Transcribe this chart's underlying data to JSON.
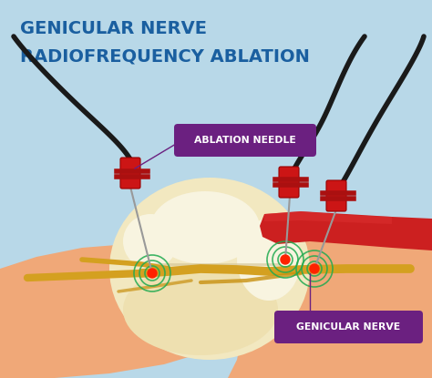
{
  "bg_color": "#B8D8E8",
  "skin_color": "#F0A878",
  "skin_color2": "#EDA070",
  "bone_color": "#F2E8C0",
  "bone_color2": "#EEE0B0",
  "bone_white": "#F8F4E0",
  "nerve_color": "#D4A020",
  "nerve_color2": "#C89010",
  "muscle_color": "#CC2020",
  "needle_color": "#999999",
  "connector_color": "#CC1515",
  "cable_color": "#1A1A1A",
  "ripple_color": "#20AA50",
  "title_color": "#1A5FA0",
  "label_bg": "#6B2080",
  "label_text": "#FFFFFF",
  "title_line1": "GENICULAR NERVE",
  "title_line2": "RADIOFREQUENCY ABLATION",
  "label1": "ABLATION NEEDLE",
  "label2": "GENICULAR NERVE"
}
